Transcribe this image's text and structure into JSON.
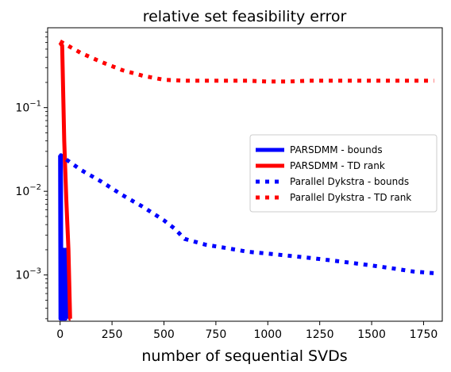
{
  "chart_data": {
    "type": "line",
    "title": "relative set feasibility error",
    "xlabel": "number of sequential SVDs",
    "ylabel": "",
    "xlim": [
      -60,
      1840
    ],
    "ylim": [
      0.00028,
      0.9
    ],
    "yscale": "log",
    "grid": false,
    "legend_position": "center-right",
    "x_ticks": [
      0,
      250,
      500,
      750,
      1000,
      1250,
      1500,
      1750
    ],
    "x_tick_labels": [
      "0",
      "250",
      "500",
      "750",
      "1000",
      "1250",
      "1500",
      "1750"
    ],
    "y_ticks": [
      0.001,
      0.01,
      0.1
    ],
    "y_tick_labels": [
      {
        "base": "10",
        "exp": "−3"
      },
      {
        "base": "10",
        "exp": "−2"
      },
      {
        "base": "10",
        "exp": "−1"
      }
    ],
    "series": [
      {
        "name": "PARSDMM - bounds",
        "color": "#0000ff",
        "style": "solid",
        "x": [
          0,
          2,
          4,
          6,
          8,
          10,
          12,
          14,
          16,
          18,
          20,
          22,
          24,
          26,
          28,
          30
        ],
        "y": [
          0.027,
          0.0003,
          0.027,
          0.0003,
          0.0003,
          0.0003,
          0.0003,
          0.0003,
          0.0003,
          0.002,
          0.0003,
          0.0003,
          0.0003,
          0.0003,
          0.002,
          0.0003
        ]
      },
      {
        "name": "PARSDMM - TD rank",
        "color": "#ff0000",
        "style": "solid",
        "x": [
          0,
          10,
          20,
          30,
          40,
          48,
          50
        ],
        "y": [
          0.6,
          0.55,
          0.04,
          0.008,
          0.002,
          0.0003,
          0.0003
        ]
      },
      {
        "name": "Parallel Dykstra - bounds",
        "color": "#0000ff",
        "style": "dotted",
        "x": [
          30,
          100,
          200,
          300,
          400,
          500,
          550,
          600,
          700,
          800,
          900,
          1000,
          1100,
          1200,
          1300,
          1400,
          1500,
          1600,
          1700,
          1800
        ],
        "y": [
          0.024,
          0.018,
          0.013,
          0.009,
          0.0065,
          0.0045,
          0.0036,
          0.0027,
          0.0023,
          0.0021,
          0.0019,
          0.0018,
          0.0017,
          0.0016,
          0.0015,
          0.0014,
          0.0013,
          0.0012,
          0.0011,
          0.00105
        ]
      },
      {
        "name": "Parallel Dykstra - TD rank",
        "color": "#ff0000",
        "style": "dotted",
        "x": [
          0,
          100,
          200,
          300,
          400,
          500,
          600,
          700,
          800,
          900,
          1000,
          1100,
          1200,
          1300,
          1400,
          1500,
          1600,
          1700,
          1800
        ],
        "y": [
          0.62,
          0.45,
          0.35,
          0.28,
          0.24,
          0.215,
          0.21,
          0.21,
          0.21,
          0.21,
          0.205,
          0.205,
          0.21,
          0.21,
          0.21,
          0.21,
          0.21,
          0.21,
          0.21
        ]
      }
    ]
  }
}
